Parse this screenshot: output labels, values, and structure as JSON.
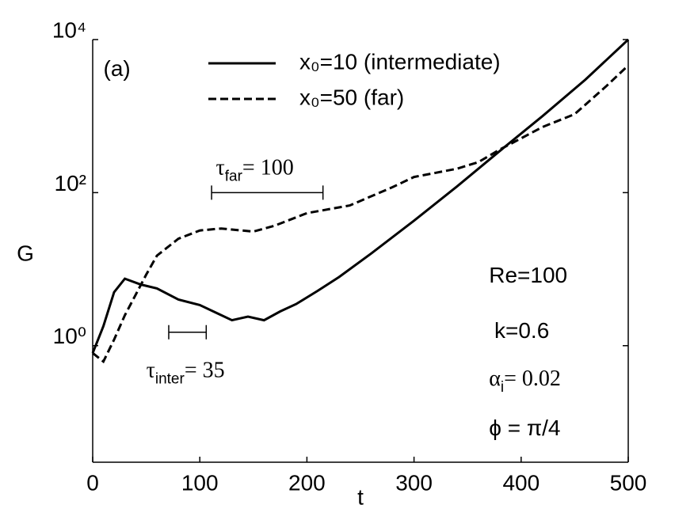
{
  "chart_data": {
    "type": "line",
    "xlabel": "t",
    "ylabel": "G",
    "log_y": true,
    "xlim": [
      0,
      500
    ],
    "ylim": [
      0.03,
      10000
    ],
    "xticks": [
      0,
      100,
      200,
      300,
      400,
      500
    ],
    "yticks": [
      {
        "value": 1,
        "label": "10⁰"
      },
      {
        "value": 100,
        "label": "10²"
      },
      {
        "value": 10000,
        "label": "10⁴"
      }
    ],
    "legend": "top",
    "series": [
      {
        "name": "x₀=10 (intermediate)",
        "color": "#000000",
        "dash": "solid",
        "x": [
          0,
          10,
          20,
          30,
          45,
          60,
          80,
          100,
          115,
          130,
          145,
          160,
          175,
          190,
          210,
          230,
          260,
          300,
          340,
          380,
          420,
          460,
          500
        ],
        "values": [
          0.8,
          1.8,
          5.0,
          7.5,
          6.3,
          5.6,
          4.0,
          3.4,
          2.7,
          2.15,
          2.4,
          2.15,
          2.8,
          3.5,
          5.2,
          7.9,
          16,
          43,
          120,
          350,
          1000,
          3000,
          10000
        ]
      },
      {
        "name": "x₀=50 (far)",
        "color": "#000000",
        "dash": "dashed",
        "x": [
          0,
          10,
          20,
          30,
          40,
          50,
          60,
          80,
          100,
          120,
          150,
          170,
          200,
          240,
          280,
          300,
          340,
          360,
          380,
          420,
          450,
          480,
          500
        ],
        "values": [
          0.8,
          0.62,
          1.2,
          2.5,
          4.6,
          8.5,
          15,
          25,
          32,
          34,
          31,
          37,
          54,
          68,
          118,
          160,
          205,
          250,
          365,
          720,
          1060,
          2500,
          4600
        ]
      }
    ],
    "annotations": [
      {
        "text": "(a)",
        "x": 10,
        "y": 4000
      },
      {
        "symbol": "τ",
        "sub": "far",
        "rest": "= 100",
        "x": 115,
        "y": 200
      },
      {
        "symbol": "τ",
        "sub": "inter",
        "rest": "= 35",
        "x": 50,
        "y": 0.45
      },
      {
        "text": "Re=100",
        "x": 370,
        "y": 8
      },
      {
        "text": "k=0.6",
        "x": 375,
        "y": 1.5
      },
      {
        "symbol": "α",
        "sub": "i",
        "rest": "= 0.02",
        "x": 370,
        "y": 0.35
      },
      {
        "text": "ϕ = π/4",
        "x": 370,
        "y": 0.08
      }
    ],
    "intervals": [
      {
        "x": [
          111,
          215
        ],
        "y": 100
      },
      {
        "x": [
          71,
          106
        ],
        "y": 1.5
      }
    ]
  }
}
